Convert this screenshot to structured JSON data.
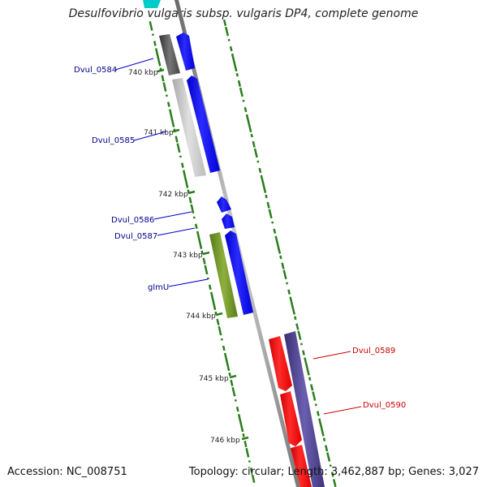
{
  "title": "Desulfovibrio vulgaris subsp. vulgaris DP4, complete genome",
  "footer": {
    "accession": "Accession: NC_008751",
    "summary": "Topology: circular; Length: 3,462,887 bp; Genes: 3,027"
  },
  "ticks": [
    "740 kbp",
    "741 kbp",
    "742 kbp",
    "743 kbp",
    "744 kbp",
    "745 kbp",
    "746 kbp"
  ],
  "genes": [
    {
      "name": "Dvul_0584",
      "color": "#00008b"
    },
    {
      "name": "Dvul_0585",
      "color": "#00008b"
    },
    {
      "name": "Dvul_0586",
      "color": "#00008b"
    },
    {
      "name": "Dvul_0587",
      "color": "#00008b"
    },
    {
      "name": "glmU",
      "color": "#00008b"
    },
    {
      "name": "Dvul_0589",
      "color": "#cc0000"
    },
    {
      "name": "Dvul_0590",
      "color": "#cc0000"
    }
  ],
  "colors": {
    "forward_cds": "#0000ff",
    "reverse_cds": "#ff0000",
    "backbone": "#888888",
    "gc_skew": "#2a7d1c",
    "glmU_feature": "#6b8e23",
    "reverse_feature": "#4b3f8f",
    "forward_feature_dark": "#555555",
    "forward_feature_light": "#c0c0c0",
    "top_fragment": "#00cccc"
  }
}
